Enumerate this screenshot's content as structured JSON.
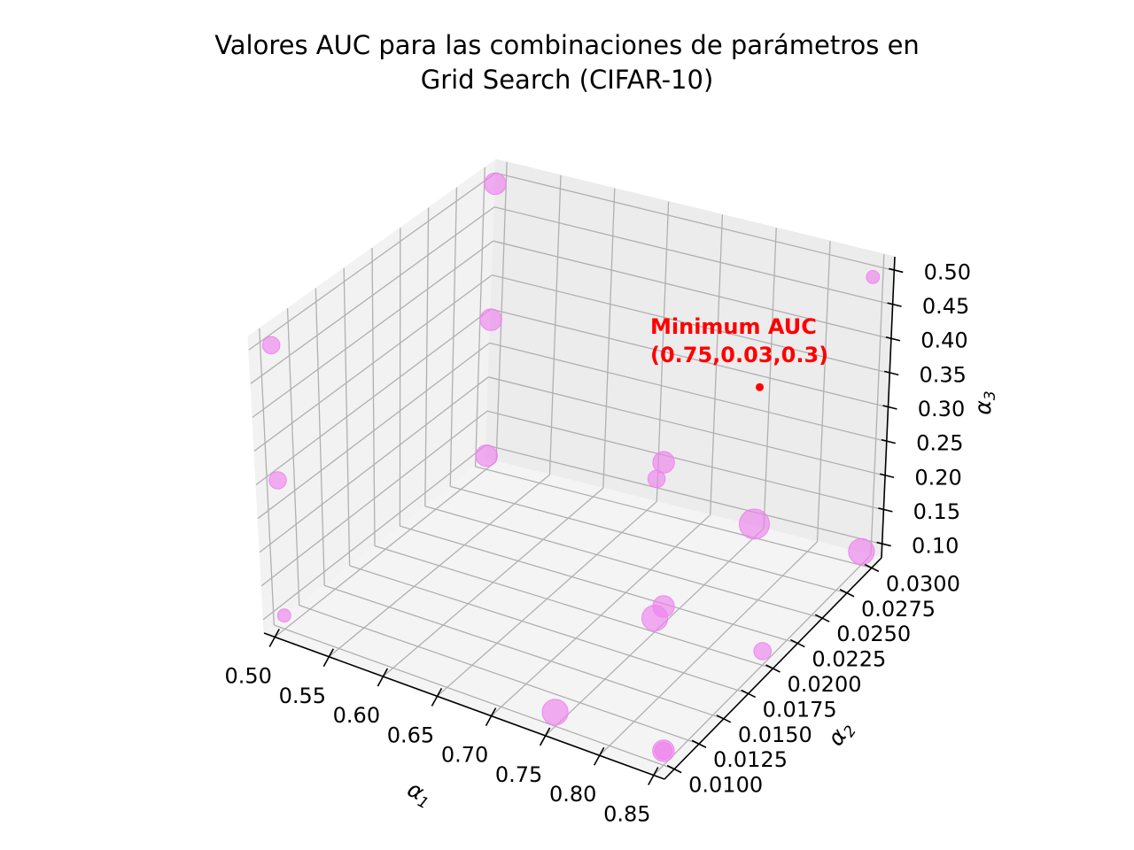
{
  "chart_data": {
    "type": "scatter3d",
    "title_line1": "Valores AUC para las combinaciones de parámetros en",
    "title_line2": "Grid Search (CIFAR-10)",
    "xlabel_symbol": "α",
    "xlabel_sub": "1",
    "ylabel_symbol": "α",
    "ylabel_sub": "2",
    "zlabel_symbol": "α",
    "zlabel_sub": "3",
    "xlim": [
      0.49,
      0.86
    ],
    "ylim": [
      0.009,
      0.031
    ],
    "zlim": [
      0.08,
      0.52
    ],
    "xticks": [
      "0.50",
      "0.55",
      "0.60",
      "0.65",
      "0.70",
      "0.75",
      "0.80",
      "0.85"
    ],
    "yticks": [
      "0.0100",
      "0.0125",
      "0.0150",
      "0.0175",
      "0.0200",
      "0.0225",
      "0.0250",
      "0.0275",
      "0.0300"
    ],
    "zticks": [
      "0.10",
      "0.15",
      "0.20",
      "0.25",
      "0.30",
      "0.35",
      "0.40",
      "0.45",
      "0.50"
    ],
    "marker_color": "#ee82ee",
    "highlight_color": "#ff0000",
    "grid": true,
    "points": [
      {
        "x": 0.5,
        "y": 0.03,
        "z": 0.5,
        "size": 3
      },
      {
        "x": 0.5,
        "y": 0.03,
        "z": 0.3,
        "size": 3
      },
      {
        "x": 0.5,
        "y": 0.03,
        "z": 0.1,
        "size": 3
      },
      {
        "x": 0.5,
        "y": 0.01,
        "z": 0.5,
        "size": 2
      },
      {
        "x": 0.5,
        "y": 0.01,
        "z": 0.3,
        "size": 2
      },
      {
        "x": 0.5,
        "y": 0.01,
        "z": 0.1,
        "size": 1
      },
      {
        "x": 0.75,
        "y": 0.03,
        "z": 0.1,
        "size": 5
      },
      {
        "x": 0.75,
        "y": 0.02,
        "z": 0.3,
        "size": 2
      },
      {
        "x": 0.75,
        "y": 0.02,
        "z": 0.1,
        "size": 4
      },
      {
        "x": 0.75,
        "y": 0.01,
        "z": 0.1,
        "size": 4
      },
      {
        "x": 0.85,
        "y": 0.03,
        "z": 0.5,
        "size": 1
      },
      {
        "x": 0.85,
        "y": 0.03,
        "z": 0.1,
        "size": 4
      },
      {
        "x": 0.85,
        "y": 0.02,
        "z": 0.1,
        "size": 2
      },
      {
        "x": 0.85,
        "y": 0.01,
        "z": 0.1,
        "size": 2
      },
      {
        "x": 0.85,
        "y": 0.01,
        "z": 0.5,
        "size": 3
      },
      {
        "x": 0.85,
        "y": 0.01,
        "z": 0.3,
        "size": 3
      },
      {
        "x": 0.85,
        "y": 0.01,
        "z": 0.1,
        "size": 3
      }
    ],
    "highlight": {
      "x": 0.75,
      "y": 0.03,
      "z": 0.3
    },
    "annotation_line1": "Minimum AUC",
    "annotation_line2": "(0.75,0.03,0.3)"
  }
}
